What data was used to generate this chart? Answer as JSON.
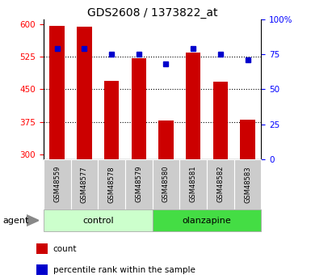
{
  "title": "GDS2608 / 1373822_at",
  "samples": [
    "GSM48559",
    "GSM48577",
    "GSM48578",
    "GSM48579",
    "GSM48580",
    "GSM48581",
    "GSM48582",
    "GSM48583"
  ],
  "bar_values": [
    595,
    593,
    470,
    522,
    378,
    535,
    468,
    380
  ],
  "percentile_values": [
    79,
    79,
    75,
    75,
    68,
    79,
    75,
    71
  ],
  "bar_color": "#cc0000",
  "dot_color": "#0000cc",
  "ylim_left": [
    290,
    610
  ],
  "ylim_right": [
    0,
    100
  ],
  "yticks_left": [
    300,
    375,
    450,
    525,
    600
  ],
  "yticks_right": [
    0,
    25,
    50,
    75,
    100
  ],
  "grid_ticks": [
    375,
    450,
    525
  ],
  "control_color": "#ccffcc",
  "olanzapine_color": "#44dd44",
  "tick_label_bg": "#cccccc",
  "agent_label": "agent",
  "legend_count": "count",
  "legend_percentile": "percentile rank within the sample",
  "bar_width": 0.55,
  "n_control": 4,
  "n_olanzapine": 4
}
